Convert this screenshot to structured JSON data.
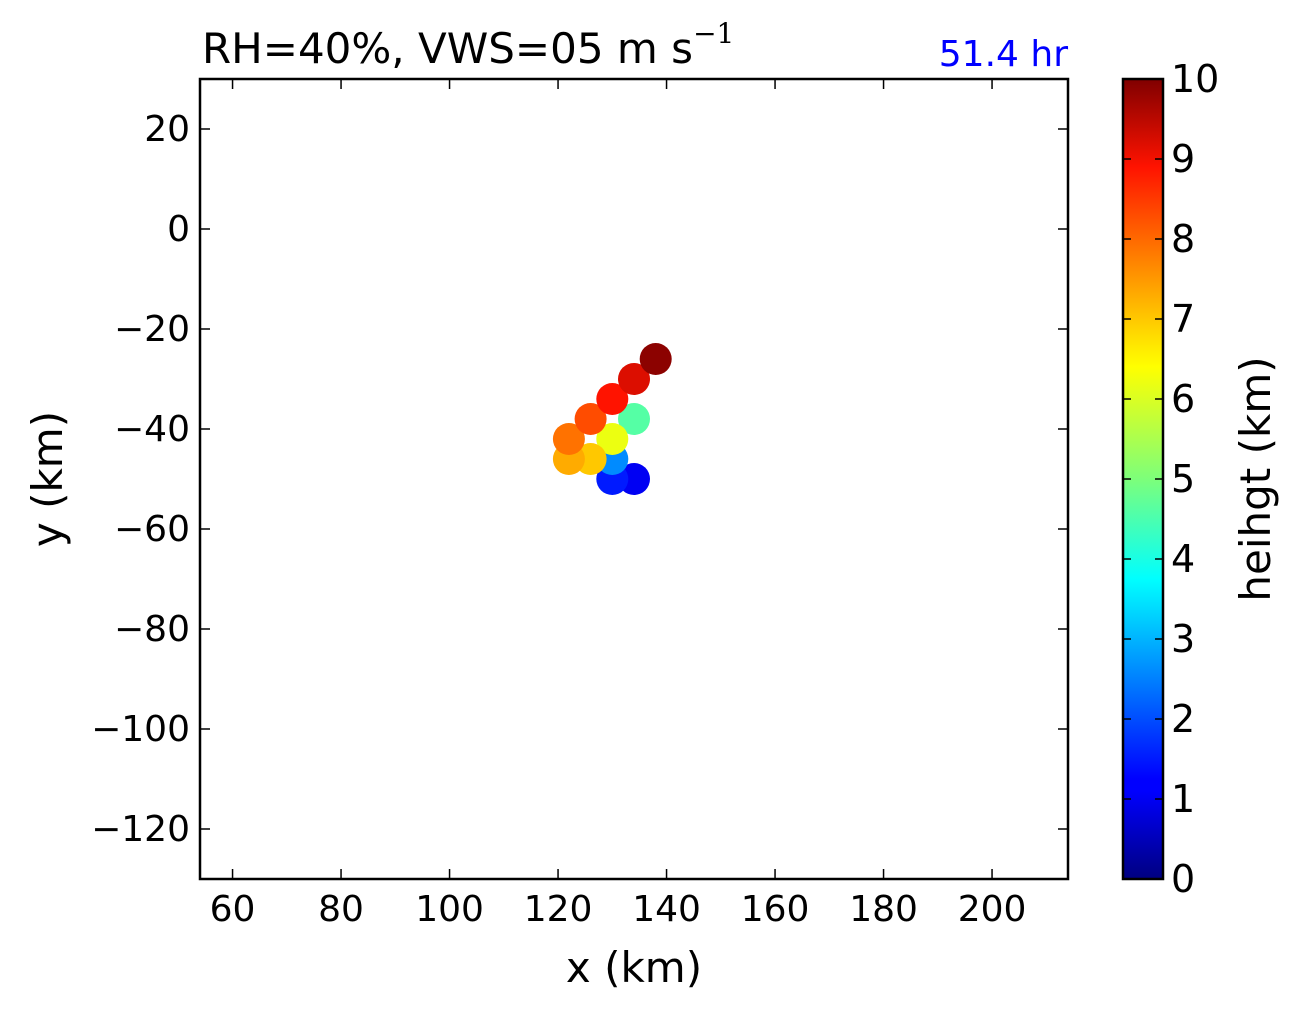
{
  "chart_data": {
    "type": "scatter",
    "title": "RH=40%, VWS=05 m s",
    "title_superscript": "−1",
    "time_label": "51.4 hr",
    "time_label_color": "#0000ff",
    "xlabel": "x (km)",
    "ylabel": "y (km)",
    "xlim": [
      54,
      214
    ],
    "ylim": [
      -130,
      30
    ],
    "xticks": [
      60,
      80,
      100,
      120,
      140,
      160,
      180,
      200
    ],
    "yticks": [
      20,
      0,
      -20,
      -40,
      -60,
      -80,
      -100,
      -120
    ],
    "ytick_labels": [
      "20",
      "0",
      "−20",
      "−40",
      "−60",
      "−80",
      "−100",
      "−120"
    ],
    "grid": false,
    "colorbar": {
      "label": "heihgt (km)",
      "colormap": "jet",
      "range": [
        0,
        10
      ],
      "ticks": [
        0,
        1,
        2,
        3,
        4,
        5,
        6,
        7,
        8,
        9,
        10
      ]
    },
    "points": [
      {
        "x": 134,
        "y": -50,
        "height": 1.0
      },
      {
        "x": 130,
        "y": -50,
        "height": 1.5
      },
      {
        "x": 130,
        "y": -46,
        "height": 2.6
      },
      {
        "x": 134,
        "y": -38,
        "height": 4.6
      },
      {
        "x": 130,
        "y": -42,
        "height": 6.2
      },
      {
        "x": 126,
        "y": -46,
        "height": 7.0
      },
      {
        "x": 122,
        "y": -46,
        "height": 7.3
      },
      {
        "x": 122,
        "y": -42,
        "height": 7.9
      },
      {
        "x": 126,
        "y": -38,
        "height": 8.3
      },
      {
        "x": 130,
        "y": -34,
        "height": 8.9
      },
      {
        "x": 134,
        "y": -30,
        "height": 9.2
      },
      {
        "x": 138,
        "y": -26,
        "height": 9.9
      }
    ]
  }
}
